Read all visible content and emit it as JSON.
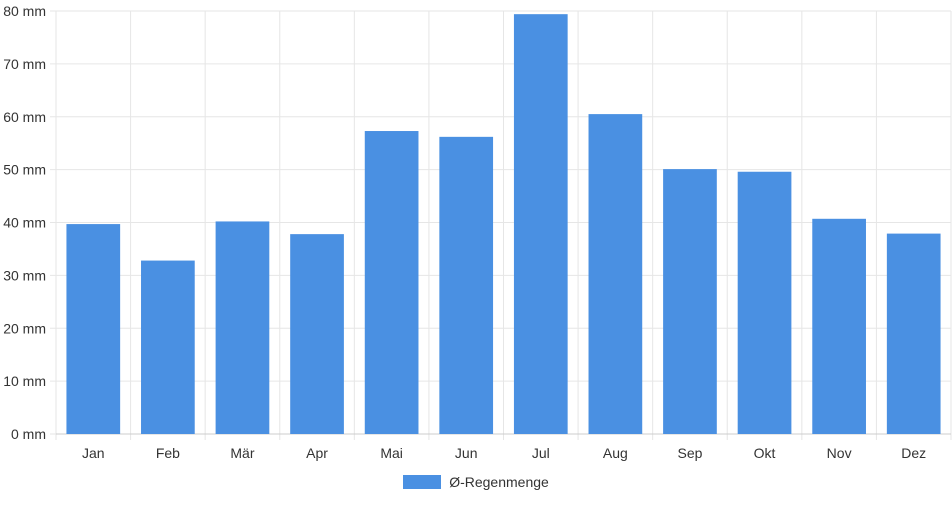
{
  "chart_data": {
    "type": "bar",
    "categories": [
      "Jan",
      "Feb",
      "Mär",
      "Apr",
      "Mai",
      "Jun",
      "Jul",
      "Aug",
      "Sep",
      "Okt",
      "Nov",
      "Dez"
    ],
    "series": [
      {
        "name": "Ø-Regenmenge",
        "values": [
          39.7,
          32.8,
          40.2,
          37.8,
          57.3,
          56.2,
          79.4,
          60.5,
          50.1,
          49.6,
          40.7,
          37.9
        ],
        "color": "#4a90e2"
      }
    ],
    "ylim": [
      0,
      80
    ],
    "yticks": [
      0,
      10,
      20,
      30,
      40,
      50,
      60,
      70,
      80
    ],
    "y_tick_suffix": " mm",
    "grid": true,
    "legend_position": "bottom"
  },
  "legend": {
    "label": "Ø-Regenmenge"
  }
}
